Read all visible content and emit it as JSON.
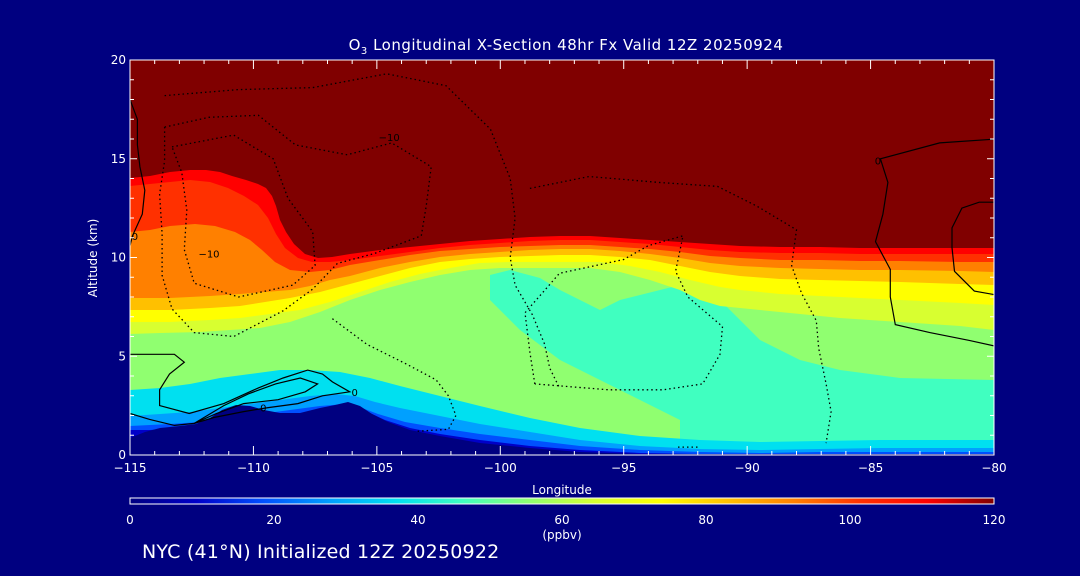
{
  "chart_data": {
    "type": "heatmap",
    "title_species": "O",
    "title_subscript": "3",
    "title_rest": " Longitudinal X-Section 48hr  Fx Valid 12Z 20250924",
    "xlabel": "Longitude",
    "ylabel": "Altitude (km)",
    "xlim": [
      -115,
      -80
    ],
    "ylim": [
      0,
      20
    ],
    "x_ticks": [
      -115,
      -110,
      -105,
      -100,
      -95,
      -90,
      -85,
      -80
    ],
    "x_tick_labels": [
      "−115",
      "−110",
      "−105",
      "−100",
      "−95",
      "−90",
      "−85",
      "−80"
    ],
    "y_ticks": [
      0,
      5,
      10,
      15,
      20
    ],
    "y_tick_labels": [
      "0",
      "5",
      "10",
      "15",
      "20"
    ],
    "colorbar": {
      "label": "(ppbv)",
      "min": 0,
      "max": 120,
      "ticks": [
        0,
        20,
        40,
        60,
        80,
        100,
        120
      ],
      "tick_labels": [
        "0",
        "20",
        "40",
        "60",
        "80",
        "100",
        "120"
      ],
      "colors": [
        "#000080",
        "#0000c8",
        "#0050ff",
        "#00a0ff",
        "#00e0f0",
        "#40ffc0",
        "#90ff70",
        "#d8ff30",
        "#ffff00",
        "#ffc000",
        "#ff8000",
        "#ff3000",
        "#ff0000",
        "#800000"
      ]
    },
    "contour_labels": [
      {
        "text": "−10",
        "lon": -104.5,
        "alt": 16.1
      },
      {
        "text": "−10",
        "lon": -111.8,
        "alt": 10.2
      },
      {
        "text": "0",
        "lon": -114.8,
        "alt": 11.1
      },
      {
        "text": "0",
        "lon": -109.6,
        "alt": 2.4
      },
      {
        "text": "0",
        "lon": -105.9,
        "alt": 3.2
      },
      {
        "text": "0",
        "lon": -84.7,
        "alt": 14.9
      }
    ],
    "wind_contours": {
      "solid": [
        [
          [
            -115,
            5.1
          ],
          [
            -113.2,
            5.1
          ],
          [
            -112.8,
            4.7
          ],
          [
            -113.4,
            4.1
          ],
          [
            -113.8,
            3.3
          ],
          [
            -113.8,
            2.5
          ],
          [
            -112.6,
            2.1
          ],
          [
            -111.2,
            2.6
          ],
          [
            -109.8,
            3.4
          ],
          [
            -108.8,
            3.9
          ],
          [
            -107.8,
            4.3
          ],
          [
            -107.2,
            4.1
          ],
          [
            -106.8,
            3.7
          ],
          [
            -106.1,
            3.2
          ],
          [
            -107.2,
            3.0
          ],
          [
            -108.2,
            2.6
          ],
          [
            -109.4,
            2.4
          ],
          [
            -110.4,
            2.2
          ],
          [
            -111.6,
            1.9
          ],
          [
            -112.4,
            1.6
          ],
          [
            -113.2,
            1.5
          ],
          [
            -114.2,
            1.8
          ],
          [
            -115,
            2.1
          ]
        ],
        [
          [
            -112.4,
            1.6
          ],
          [
            -111.2,
            2.5
          ],
          [
            -110.2,
            3.1
          ],
          [
            -109.1,
            3.6
          ],
          [
            -108.1,
            3.9
          ],
          [
            -107.4,
            3.6
          ],
          [
            -107.9,
            3.2
          ],
          [
            -109.0,
            2.8
          ],
          [
            -110.4,
            2.6
          ],
          [
            -111.5,
            2.1
          ],
          [
            -112.4,
            1.6
          ]
        ],
        [
          [
            -115,
            18.0
          ],
          [
            -114.7,
            17.0
          ],
          [
            -114.7,
            15.7
          ],
          [
            -114.6,
            14.6
          ],
          [
            -114.4,
            13.4
          ],
          [
            -114.5,
            12.2
          ],
          [
            -114.9,
            11.1
          ],
          [
            -115,
            10.6
          ]
        ],
        [
          [
            -79.9,
            16.0
          ],
          [
            -82.2,
            15.8
          ],
          [
            -84.6,
            15.0
          ],
          [
            -84.3,
            13.8
          ],
          [
            -84.5,
            12.2
          ],
          [
            -84.8,
            10.8
          ],
          [
            -84.2,
            9.4
          ],
          [
            -84.2,
            8.0
          ],
          [
            -84.0,
            6.6
          ],
          [
            -82.6,
            6.2
          ],
          [
            -81.0,
            5.8
          ],
          [
            -79.9,
            5.5
          ]
        ],
        [
          [
            -79.9,
            12.8
          ],
          [
            -80.6,
            12.8
          ],
          [
            -81.3,
            12.5
          ],
          [
            -81.7,
            11.5
          ],
          [
            -81.7,
            10.5
          ],
          [
            -81.6,
            9.3
          ],
          [
            -80.8,
            8.3
          ],
          [
            -79.9,
            8.1
          ]
        ]
      ],
      "dotted": [
        [
          [
            -113.3,
            15.6
          ],
          [
            -110.8,
            16.2
          ],
          [
            -109.2,
            15.0
          ],
          [
            -108.6,
            13.0
          ],
          [
            -107.6,
            11.3
          ],
          [
            -107.5,
            9.6
          ],
          [
            -108.4,
            8.6
          ],
          [
            -110.6,
            8.0
          ],
          [
            -112.4,
            8.7
          ],
          [
            -112.8,
            10.4
          ],
          [
            -112.7,
            12.4
          ],
          [
            -112.9,
            14.3
          ],
          [
            -113.3,
            15.6
          ]
        ],
        [
          [
            -113.6,
            16.6
          ],
          [
            -111.8,
            17.1
          ],
          [
            -109.8,
            17.2
          ],
          [
            -108.3,
            15.7
          ],
          [
            -106.2,
            15.2
          ],
          [
            -104.4,
            15.8
          ],
          [
            -102.8,
            14.6
          ],
          [
            -103.0,
            12.6
          ],
          [
            -103.2,
            11.1
          ],
          [
            -105.1,
            10.2
          ],
          [
            -106.6,
            9.7
          ],
          [
            -107.6,
            8.4
          ],
          [
            -108.8,
            7.3
          ],
          [
            -110.8,
            6.0
          ],
          [
            -112.4,
            6.2
          ],
          [
            -113.3,
            7.4
          ],
          [
            -113.7,
            9.1
          ],
          [
            -113.7,
            11.2
          ],
          [
            -113.8,
            13.2
          ],
          [
            -113.6,
            14.9
          ],
          [
            -113.6,
            16.6
          ]
        ],
        [
          [
            -113.6,
            18.2
          ],
          [
            -110.6,
            18.5
          ],
          [
            -107.6,
            18.6
          ],
          [
            -104.6,
            19.3
          ],
          [
            -102.2,
            18.7
          ],
          [
            -100.4,
            16.5
          ],
          [
            -99.6,
            14.0
          ],
          [
            -99.4,
            12.0
          ],
          [
            -99.6,
            10.0
          ],
          [
            -99.4,
            8.6
          ],
          [
            -98.7,
            7.1
          ],
          [
            -98.2,
            5.6
          ],
          [
            -98.0,
            4.4
          ],
          [
            -97.6,
            3.4
          ]
        ],
        [
          [
            -106.8,
            6.9
          ],
          [
            -105.4,
            5.6
          ],
          [
            -103.8,
            4.6
          ],
          [
            -102.6,
            3.8
          ],
          [
            -102.1,
            3.0
          ],
          [
            -101.8,
            2.0
          ],
          [
            -102.1,
            1.3
          ],
          [
            -103.4,
            1.2
          ]
        ],
        [
          [
            -98.6,
            3.6
          ],
          [
            -98.8,
            5.2
          ],
          [
            -99.0,
            7.2
          ],
          [
            -97.6,
            9.2
          ],
          [
            -95.0,
            9.9
          ],
          [
            -94.0,
            10.6
          ],
          [
            -92.6,
            11.1
          ],
          [
            -92.9,
            9.3
          ],
          [
            -92.4,
            8.0
          ],
          [
            -91.0,
            6.5
          ],
          [
            -91.1,
            5.1
          ],
          [
            -91.8,
            3.6
          ],
          [
            -93.4,
            3.3
          ],
          [
            -95.6,
            3.3
          ],
          [
            -98.6,
            3.6
          ]
        ],
        [
          [
            -98.8,
            13.5
          ],
          [
            -96.4,
            14.1
          ],
          [
            -93.6,
            13.8
          ],
          [
            -91.2,
            13.6
          ],
          [
            -89.6,
            12.6
          ],
          [
            -88.0,
            11.4
          ],
          [
            -88.2,
            9.6
          ],
          [
            -87.8,
            8.2
          ],
          [
            -87.2,
            6.8
          ],
          [
            -87.1,
            5.4
          ],
          [
            -86.8,
            3.6
          ],
          [
            -86.6,
            2.2
          ],
          [
            -86.8,
            0.6
          ]
        ],
        [
          [
            -92.8,
            0.4
          ],
          [
            -91.9,
            0.4
          ]
        ]
      ]
    }
  },
  "footer": {
    "location": "NYC (41°N) Initialized 12Z 20250922"
  }
}
